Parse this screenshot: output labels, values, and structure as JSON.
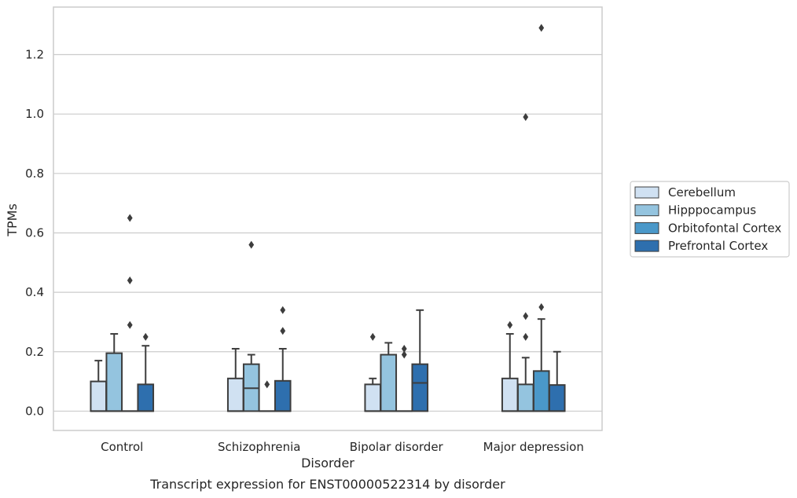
{
  "colors": {
    "Cerebellum": "#d0e1f2",
    "Hipppocampus": "#94c4df",
    "Orbitofontal Cortex": "#4a98c9",
    "Prefrontal Cortex": "#2e6fae",
    "edge": "#3d3d3d",
    "grid": "#cccccc",
    "frame": "#cccccc"
  },
  "chart_data": {
    "type": "box",
    "title": "",
    "caption": "Transcript expression for ENST00000522314 by disorder",
    "xlabel": "Disorder",
    "ylabel": "TPMs",
    "ylim": [
      -0.065,
      1.36
    ],
    "yticks": [
      0.0,
      0.2,
      0.4,
      0.6,
      0.8,
      1.0,
      1.2
    ],
    "ytick_labels": [
      "0.0",
      "0.2",
      "0.4",
      "0.6",
      "0.8",
      "1.0",
      "1.2"
    ],
    "grid": true,
    "legend_position": "right, outside plot",
    "categories": [
      "Control",
      "Schizophrenia",
      "Bipolar disorder",
      "Major depression"
    ],
    "series": [
      {
        "name": "Cerebellum",
        "boxes": [
          {
            "min": 0.0,
            "q1": 0.0,
            "median": 0.0,
            "q3": 0.1,
            "max": 0.17,
            "outliers": []
          },
          {
            "min": 0.0,
            "q1": 0.0,
            "median": 0.0,
            "q3": 0.11,
            "max": 0.21,
            "outliers": []
          },
          {
            "min": 0.0,
            "q1": 0.0,
            "median": 0.0,
            "q3": 0.09,
            "max": 0.11,
            "outliers": [
              0.25
            ]
          },
          {
            "min": 0.0,
            "q1": 0.0,
            "median": 0.0,
            "q3": 0.11,
            "max": 0.26,
            "outliers": [
              0.29
            ]
          }
        ]
      },
      {
        "name": "Hipppocampus",
        "boxes": [
          {
            "min": 0.0,
            "q1": 0.0,
            "median": 0.0,
            "q3": 0.195,
            "max": 0.26,
            "outliers": []
          },
          {
            "min": 0.0,
            "q1": 0.0,
            "median": 0.077,
            "q3": 0.158,
            "max": 0.19,
            "outliers": [
              0.56
            ]
          },
          {
            "min": 0.0,
            "q1": 0.0,
            "median": 0.0,
            "q3": 0.19,
            "max": 0.23,
            "outliers": []
          },
          {
            "min": 0.0,
            "q1": 0.0,
            "median": 0.0,
            "q3": 0.09,
            "max": 0.18,
            "outliers": [
              0.25,
              0.32,
              0.99
            ]
          }
        ]
      },
      {
        "name": "Orbitofontal Cortex",
        "boxes": [
          {
            "min": 0.0,
            "q1": 0.0,
            "median": 0.0,
            "q3": 0.0,
            "max": 0.0,
            "outliers": [
              0.29,
              0.44,
              0.65
            ]
          },
          {
            "min": 0.0,
            "q1": 0.0,
            "median": 0.0,
            "q3": 0.0,
            "max": 0.0,
            "outliers": [
              0.09
            ]
          },
          {
            "min": 0.0,
            "q1": 0.0,
            "median": 0.0,
            "q3": 0.0,
            "max": 0.0,
            "outliers": [
              0.19,
              0.21
            ]
          },
          {
            "min": 0.0,
            "q1": 0.0,
            "median": 0.0,
            "q3": 0.135,
            "max": 0.31,
            "outliers": [
              0.35,
              1.29
            ]
          }
        ]
      },
      {
        "name": "Prefrontal Cortex",
        "boxes": [
          {
            "min": 0.0,
            "q1": 0.0,
            "median": 0.0,
            "q3": 0.09,
            "max": 0.22,
            "outliers": [
              0.25
            ]
          },
          {
            "min": 0.0,
            "q1": 0.0,
            "median": 0.0,
            "q3": 0.102,
            "max": 0.21,
            "outliers": [
              0.27,
              0.34
            ]
          },
          {
            "min": 0.0,
            "q1": 0.0,
            "median": 0.095,
            "q3": 0.158,
            "max": 0.34,
            "outliers": []
          },
          {
            "min": 0.0,
            "q1": 0.0,
            "median": 0.0,
            "q3": 0.088,
            "max": 0.2,
            "outliers": []
          }
        ]
      }
    ]
  }
}
